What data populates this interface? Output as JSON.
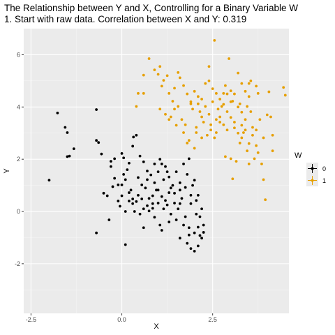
{
  "chart_data": {
    "type": "scatter",
    "title": "The Relationship between Y and X, Controlling for a Binary Variable W",
    "subtitle": "1. Start with raw data. Correlation between X and Y: 0.319",
    "xlabel": "X",
    "ylabel": "Y",
    "xlim": [
      -2.7,
      4.6
    ],
    "ylim": [
      -3.9,
      7.0
    ],
    "x_ticks": [
      -2.5,
      0.0,
      2.5
    ],
    "x_tick_labels": [
      "-2.5",
      "0.0",
      "2.5"
    ],
    "y_ticks": [
      -2,
      0,
      2,
      4,
      6
    ],
    "y_tick_labels": [
      "-2",
      "0",
      "2",
      "4",
      "6"
    ],
    "grid": true,
    "legend": {
      "title": "W",
      "position": "right"
    },
    "series": [
      {
        "name": "0",
        "color": "#000000",
        "points": [
          [
            -2.0,
            1.2
          ],
          [
            -1.77,
            3.77
          ],
          [
            -1.56,
            3.22
          ],
          [
            -1.5,
            3.02
          ],
          [
            -1.5,
            2.1
          ],
          [
            -1.44,
            2.12
          ],
          [
            -1.32,
            2.4
          ],
          [
            -0.7,
            3.9
          ],
          [
            -0.7,
            2.72
          ],
          [
            -0.64,
            2.64
          ],
          [
            -0.56,
            2.2
          ],
          [
            -0.3,
            1.92
          ],
          [
            -0.3,
            1.72
          ],
          [
            -0.2,
            1.27
          ],
          [
            -0.1,
            1.02
          ],
          [
            0.05,
            1.42
          ],
          [
            0.1,
            1.22
          ],
          [
            0.2,
            0.72
          ],
          [
            0.3,
            0.48
          ],
          [
            0.4,
            0.38
          ],
          [
            0.55,
            0.48
          ],
          [
            0.7,
            0.22
          ],
          [
            0.85,
            0.12
          ],
          [
            1.0,
            0.82
          ],
          [
            1.1,
            0.57
          ],
          [
            1.2,
            0.42
          ],
          [
            1.3,
            0.72
          ],
          [
            1.45,
            0.32
          ],
          [
            1.6,
            0.82
          ],
          [
            1.75,
            0.92
          ],
          [
            1.9,
            0.62
          ],
          [
            2.05,
            0.42
          ],
          [
            2.2,
            0.1
          ],
          [
            -0.5,
            0.7
          ],
          [
            -0.4,
            0.6
          ],
          [
            -0.25,
            0.95
          ],
          [
            -0.05,
            0.2
          ],
          [
            0.1,
            0.0
          ],
          [
            0.3,
            0.3
          ],
          [
            0.5,
            -0.1
          ],
          [
            0.6,
            0.1
          ],
          [
            0.75,
            0.02
          ],
          [
            0.9,
            -0.22
          ],
          [
            1.05,
            -0.52
          ],
          [
            1.15,
            0.1
          ],
          [
            1.35,
            -0.1
          ],
          [
            1.5,
            -0.32
          ],
          [
            1.7,
            -0.52
          ],
          [
            1.85,
            -0.62
          ],
          [
            2.0,
            -0.82
          ],
          [
            2.15,
            -0.92
          ],
          [
            2.25,
            -0.52
          ],
          [
            1.8,
            -1.22
          ],
          [
            1.9,
            -1.42
          ],
          [
            2.0,
            -1.52
          ],
          [
            2.1,
            -1.32
          ],
          [
            2.2,
            -1.02
          ],
          [
            -0.7,
            -0.82
          ],
          [
            -0.35,
            -0.32
          ],
          [
            0.1,
            -1.27
          ],
          [
            0.6,
            -0.62
          ],
          [
            1.1,
            -0.72
          ],
          [
            1.6,
            -1.02
          ],
          [
            2.25,
            -0.8
          ],
          [
            0.0,
            2.22
          ],
          [
            0.05,
            2.05
          ],
          [
            0.2,
            1.85
          ],
          [
            0.3,
            2.5
          ],
          [
            0.32,
            2.85
          ],
          [
            0.4,
            2.92
          ],
          [
            0.5,
            2.12
          ],
          [
            0.6,
            1.9
          ],
          [
            0.7,
            1.55
          ],
          [
            0.8,
            1.4
          ],
          [
            0.9,
            1.1
          ],
          [
            1.0,
            1.52
          ],
          [
            1.1,
            1.82
          ],
          [
            1.2,
            1.72
          ],
          [
            1.3,
            1.32
          ],
          [
            1.4,
            1.0
          ],
          [
            1.5,
            1.52
          ],
          [
            1.6,
            1.1
          ],
          [
            1.7,
            1.82
          ],
          [
            1.8,
            1.42
          ],
          [
            1.9,
            0.3
          ],
          [
            2.0,
            1.2
          ],
          [
            2.1,
            0.62
          ],
          [
            -0.2,
            2.02
          ],
          [
            0.15,
            1.6
          ],
          [
            0.45,
            1.3
          ],
          [
            0.65,
            0.9
          ],
          [
            0.85,
            0.6
          ],
          [
            1.25,
            0.25
          ],
          [
            1.45,
            0.7
          ],
          [
            1.65,
            0.5
          ],
          [
            1.95,
            1.0
          ],
          [
            2.15,
            -0.2
          ],
          [
            0.25,
            0.82
          ],
          [
            0.55,
            1.02
          ],
          [
            0.95,
            0.82
          ],
          [
            1.15,
            1.22
          ],
          [
            1.35,
            0.9
          ],
          [
            0.35,
            0.0
          ],
          [
            0.75,
            0.5
          ],
          [
            1.55,
            0.1
          ],
          [
            1.75,
            -0.2
          ],
          [
            2.05,
            -0.1
          ],
          [
            0.0,
            1.02
          ],
          [
            0.2,
            0.4
          ],
          [
            0.45,
            0.62
          ],
          [
            0.7,
            1.22
          ],
          [
            1.0,
            0.32
          ],
          [
            1.3,
            -0.4
          ],
          [
            1.6,
            0.3
          ],
          [
            1.85,
            -0.9
          ],
          [
            2.1,
            -0.6
          ],
          [
            1.05,
            2.0
          ],
          [
            1.85,
            2.02
          ],
          [
            0.0,
            0.6
          ],
          [
            -0.1,
            0.4
          ],
          [
            0.9,
            1.82
          ],
          [
            1.25,
            1.52
          ],
          [
            0.85,
            0.3
          ]
        ]
      },
      {
        "name": "1",
        "color": "#E69F00",
        "points": [
          [
            0.4,
            4.02
          ],
          [
            0.45,
            4.52
          ],
          [
            0.6,
            4.52
          ],
          [
            0.6,
            5.22
          ],
          [
            0.75,
            5.85
          ],
          [
            0.9,
            5.42
          ],
          [
            1.0,
            5.25
          ],
          [
            1.05,
            5.55
          ],
          [
            1.15,
            5.02
          ],
          [
            1.25,
            5.2
          ],
          [
            1.3,
            4.52
          ],
          [
            1.4,
            4.22
          ],
          [
            1.45,
            4.72
          ],
          [
            1.55,
            5.32
          ],
          [
            1.6,
            5.12
          ],
          [
            1.7,
            4.82
          ],
          [
            1.8,
            4.5
          ],
          [
            1.9,
            4.2
          ],
          [
            2.0,
            4.6
          ],
          [
            2.1,
            4.4
          ],
          [
            2.2,
            4.3
          ],
          [
            2.3,
            4.9
          ],
          [
            2.4,
            5.0
          ],
          [
            2.5,
            4.7
          ],
          [
            2.6,
            4.52
          ],
          [
            2.7,
            4.3
          ],
          [
            2.8,
            4.1
          ],
          [
            2.9,
            4.5
          ],
          [
            3.0,
            4.2
          ],
          [
            3.1,
            4.5
          ],
          [
            3.2,
            4.0
          ],
          [
            3.3,
            3.8
          ],
          [
            3.4,
            4.6
          ],
          [
            3.5,
            4.4
          ],
          [
            2.4,
            5.55
          ],
          [
            2.55,
            6.55
          ],
          [
            2.95,
            5.85
          ],
          [
            3.2,
            5.3
          ],
          [
            3.3,
            4.9
          ],
          [
            3.5,
            4.9
          ],
          [
            3.55,
            5.0
          ],
          [
            3.7,
            4.8
          ],
          [
            3.75,
            4.52
          ],
          [
            4.05,
            4.58
          ],
          [
            4.45,
            4.75
          ],
          [
            4.5,
            4.45
          ],
          [
            2.6,
            3.52
          ],
          [
            2.7,
            3.62
          ],
          [
            2.8,
            3.32
          ],
          [
            2.9,
            3.12
          ],
          [
            3.0,
            3.6
          ],
          [
            3.1,
            3.2
          ],
          [
            3.2,
            3.0
          ],
          [
            3.3,
            2.82
          ],
          [
            3.4,
            3.12
          ],
          [
            3.5,
            2.6
          ],
          [
            3.6,
            2.92
          ],
          [
            3.7,
            2.52
          ],
          [
            3.8,
            3.52
          ],
          [
            3.9,
            2.82
          ],
          [
            4.0,
            3.7
          ],
          [
            4.1,
            3.62
          ],
          [
            4.15,
            2.92
          ],
          [
            4.15,
            2.32
          ],
          [
            3.85,
            1.82
          ],
          [
            3.9,
            1.22
          ],
          [
            3.95,
            0.45
          ],
          [
            3.0,
            2.02
          ],
          [
            3.15,
            1.92
          ],
          [
            3.5,
            1.82
          ],
          [
            3.65,
            2.02
          ],
          [
            3.75,
            2.25
          ],
          [
            2.85,
            2.1
          ],
          [
            3.05,
            1.25
          ],
          [
            1.3,
            3.52
          ],
          [
            1.5,
            3.3
          ],
          [
            1.7,
            3.02
          ],
          [
            1.85,
            2.72
          ],
          [
            2.05,
            3.22
          ],
          [
            2.25,
            3.42
          ],
          [
            2.35,
            2.92
          ],
          [
            2.45,
            3.12
          ],
          [
            2.55,
            2.82
          ],
          [
            1.2,
            3.72
          ],
          [
            1.45,
            3.92
          ],
          [
            1.65,
            3.52
          ],
          [
            1.75,
            3.32
          ],
          [
            2.15,
            3.82
          ],
          [
            2.2,
            3.62
          ],
          [
            2.3,
            4.02
          ],
          [
            2.5,
            4.2
          ],
          [
            2.65,
            3.92
          ],
          [
            2.75,
            4.02
          ],
          [
            2.8,
            4.52
          ],
          [
            3.05,
            4.22
          ],
          [
            3.25,
            4.12
          ],
          [
            3.45,
            4.02
          ],
          [
            1.1,
            4.8
          ],
          [
            1.55,
            4.02
          ],
          [
            1.95,
            3.92
          ],
          [
            2.05,
            3.02
          ],
          [
            2.6,
            3.02
          ],
          [
            2.9,
            3.82
          ],
          [
            3.1,
            3.42
          ],
          [
            3.25,
            2.62
          ],
          [
            3.4,
            3.52
          ],
          [
            3.6,
            3.22
          ],
          [
            1.35,
            3.62
          ],
          [
            1.9,
            4.12
          ],
          [
            2.1,
            4.12
          ],
          [
            2.4,
            3.72
          ],
          [
            2.7,
            3.42
          ],
          [
            2.85,
            4.82
          ],
          [
            3.0,
            4.62
          ],
          [
            3.35,
            3.02
          ],
          [
            3.55,
            3.82
          ],
          [
            3.7,
            3.12
          ],
          [
            1.8,
            2.62
          ],
          [
            2.0,
            2.42
          ],
          [
            2.2,
            2.82
          ],
          [
            2.45,
            3.32
          ],
          [
            1.05,
            3.92
          ],
          [
            3.3,
            3.3
          ],
          [
            3.45,
            2.32
          ]
        ]
      }
    ]
  }
}
